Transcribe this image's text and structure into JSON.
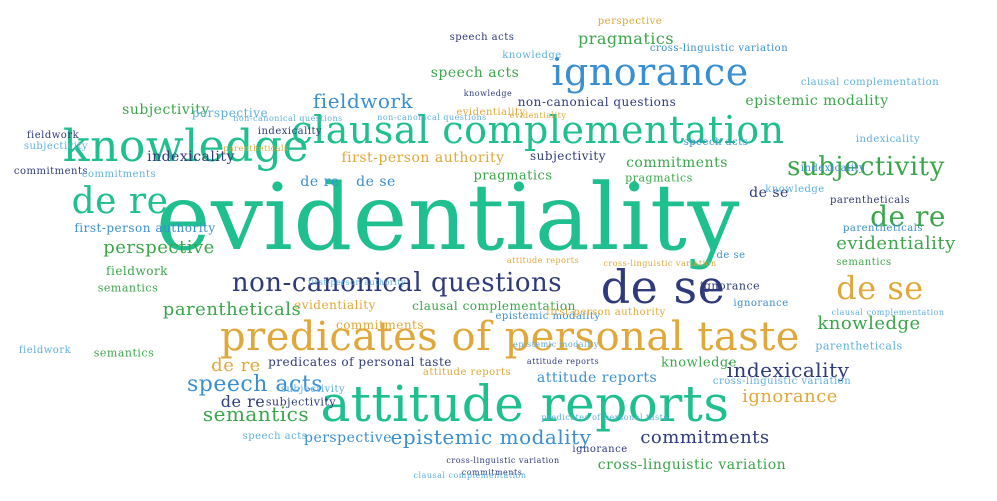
{
  "palette": {
    "teal": "#1fbf8f",
    "green": "#3aa64a",
    "gold": "#e0a83a",
    "navy": "#2f3a7a",
    "blue": "#3a8fd0",
    "light_blue": "#5fb0e0",
    "lime": "#7ac143"
  },
  "words": [
    {
      "t": "evidentiality",
      "c": "teal"
    },
    {
      "t": "attitude reports",
      "c": "teal"
    },
    {
      "t": "predicates of personal taste",
      "c": "gold"
    },
    {
      "t": "knowledge",
      "c": "teal"
    },
    {
      "t": "clausal complementation",
      "c": "teal"
    },
    {
      "t": "de se",
      "c": "navy"
    },
    {
      "t": "de re",
      "c": "teal"
    },
    {
      "t": "ignorance",
      "c": "blue"
    },
    {
      "t": "non-canonical questions",
      "c": "navy"
    },
    {
      "t": "de re",
      "c": "green"
    },
    {
      "t": "de se",
      "c": "gold"
    },
    {
      "t": "subjectivity",
      "c": "green"
    },
    {
      "t": "speech acts",
      "c": "blue"
    },
    {
      "t": "epistemic modality",
      "c": "blue"
    },
    {
      "t": "commitments",
      "c": "navy"
    },
    {
      "t": "indexicality",
      "c": "navy"
    },
    {
      "t": "evidentiality",
      "c": "green"
    },
    {
      "t": "fieldwork",
      "c": "blue"
    },
    {
      "t": "semantics",
      "c": "green"
    },
    {
      "t": "parentheticals",
      "c": "green"
    },
    {
      "t": "perspective",
      "c": "green"
    },
    {
      "t": "knowledge",
      "c": "green"
    },
    {
      "t": "ignorance",
      "c": "gold"
    },
    {
      "t": "pragmatics",
      "c": "green"
    },
    {
      "t": "speech acts",
      "c": "green"
    },
    {
      "t": "first-person authority",
      "c": "gold"
    },
    {
      "t": "subjectivity",
      "c": "green"
    },
    {
      "t": "epistemic modality",
      "c": "green"
    },
    {
      "t": "cross-linguistic variation",
      "c": "green"
    },
    {
      "t": "de re",
      "c": "gold"
    },
    {
      "t": "predicates of personal taste",
      "c": "navy"
    },
    {
      "t": "de re",
      "c": "navy"
    },
    {
      "t": "perspective",
      "c": "blue"
    },
    {
      "t": "commitments",
      "c": "green"
    },
    {
      "t": "pragmatics",
      "c": "green"
    },
    {
      "t": "de se",
      "c": "blue"
    },
    {
      "t": "de re",
      "c": "blue"
    },
    {
      "t": "de se",
      "c": "navy"
    },
    {
      "t": "first-person authority",
      "c": "blue"
    },
    {
      "t": "attitude reports",
      "c": "blue"
    },
    {
      "t": "semantics",
      "c": "green"
    },
    {
      "t": "knowledge",
      "c": "green"
    },
    {
      "t": "clausal complementation",
      "c": "green"
    },
    {
      "t": "parentheticals",
      "c": "light_blue"
    },
    {
      "t": "indexicality",
      "c": "navy"
    },
    {
      "t": "fieldwork",
      "c": "green"
    },
    {
      "t": "subjectivity",
      "c": "navy"
    },
    {
      "t": "evidentiality",
      "c": "gold"
    },
    {
      "t": "commitments",
      "c": "gold"
    },
    {
      "t": "ignorance",
      "c": "blue"
    },
    {
      "t": "non-canonical questions",
      "c": "navy"
    },
    {
      "t": "perspective",
      "c": "light_blue"
    },
    {
      "t": "speech acts",
      "c": "navy"
    },
    {
      "t": "knowledge",
      "c": "light_blue"
    },
    {
      "t": "cross-linguistic variation",
      "c": "blue"
    },
    {
      "t": "subjectivity",
      "c": "light_blue"
    },
    {
      "t": "speech acts",
      "c": "blue"
    },
    {
      "t": "indexicality",
      "c": "light_blue"
    },
    {
      "t": "fieldwork",
      "c": "navy"
    },
    {
      "t": "semantics",
      "c": "green"
    },
    {
      "t": "pragmatics",
      "c": "green"
    },
    {
      "t": "parentheticals",
      "c": "navy"
    },
    {
      "t": "de se",
      "c": "blue"
    },
    {
      "t": "ignorance",
      "c": "navy"
    },
    {
      "t": "epistemic modality",
      "c": "blue"
    },
    {
      "t": "first-person authority",
      "c": "gold"
    },
    {
      "t": "commitments",
      "c": "navy"
    },
    {
      "t": "commitments",
      "c": "light_blue"
    },
    {
      "t": "attitude reports",
      "c": "gold"
    },
    {
      "t": "cross-linguistic variation",
      "c": "light_blue"
    },
    {
      "t": "ignorance",
      "c": "navy"
    },
    {
      "t": "speech acts",
      "c": "light_blue"
    },
    {
      "t": "subjectivity",
      "c": "navy"
    },
    {
      "t": "fieldwork",
      "c": "light_blue"
    },
    {
      "t": "subjectivity",
      "c": "light_blue"
    },
    {
      "t": "commitments",
      "c": "navy"
    },
    {
      "t": "indexicality",
      "c": "blue"
    },
    {
      "t": "knowledge",
      "c": "light_blue"
    },
    {
      "t": "parentheticals",
      "c": "blue"
    },
    {
      "t": "semantics",
      "c": "green"
    },
    {
      "t": "evidentiality",
      "c": "gold"
    },
    {
      "t": "knowledge",
      "c": "navy"
    },
    {
      "t": "perspective",
      "c": "gold"
    },
    {
      "t": "clausal complementation",
      "c": "light_blue"
    },
    {
      "t": "clausal complementation",
      "c": "light_blue"
    },
    {
      "t": "clausal complementation",
      "c": "light_blue"
    },
    {
      "t": "indexicality",
      "c": "navy"
    },
    {
      "t": "non-canonical questions",
      "c": "light_blue"
    },
    {
      "t": "first-person authority",
      "c": "light_blue"
    },
    {
      "t": "cross-linguistic variation",
      "c": "gold"
    },
    {
      "t": "attitude reports",
      "c": "navy"
    },
    {
      "t": "attitude reports",
      "c": "gold"
    },
    {
      "t": "epistemic modality",
      "c": "light_blue"
    },
    {
      "t": "predicates of personal taste",
      "c": "light_blue"
    },
    {
      "t": "evidentiality",
      "c": "gold"
    },
    {
      "t": "parentheticals",
      "c": "gold"
    },
    {
      "t": "non-canonical questions",
      "c": "light_blue"
    },
    {
      "t": "cross-linguistic variation",
      "c": "navy"
    }
  ]
}
